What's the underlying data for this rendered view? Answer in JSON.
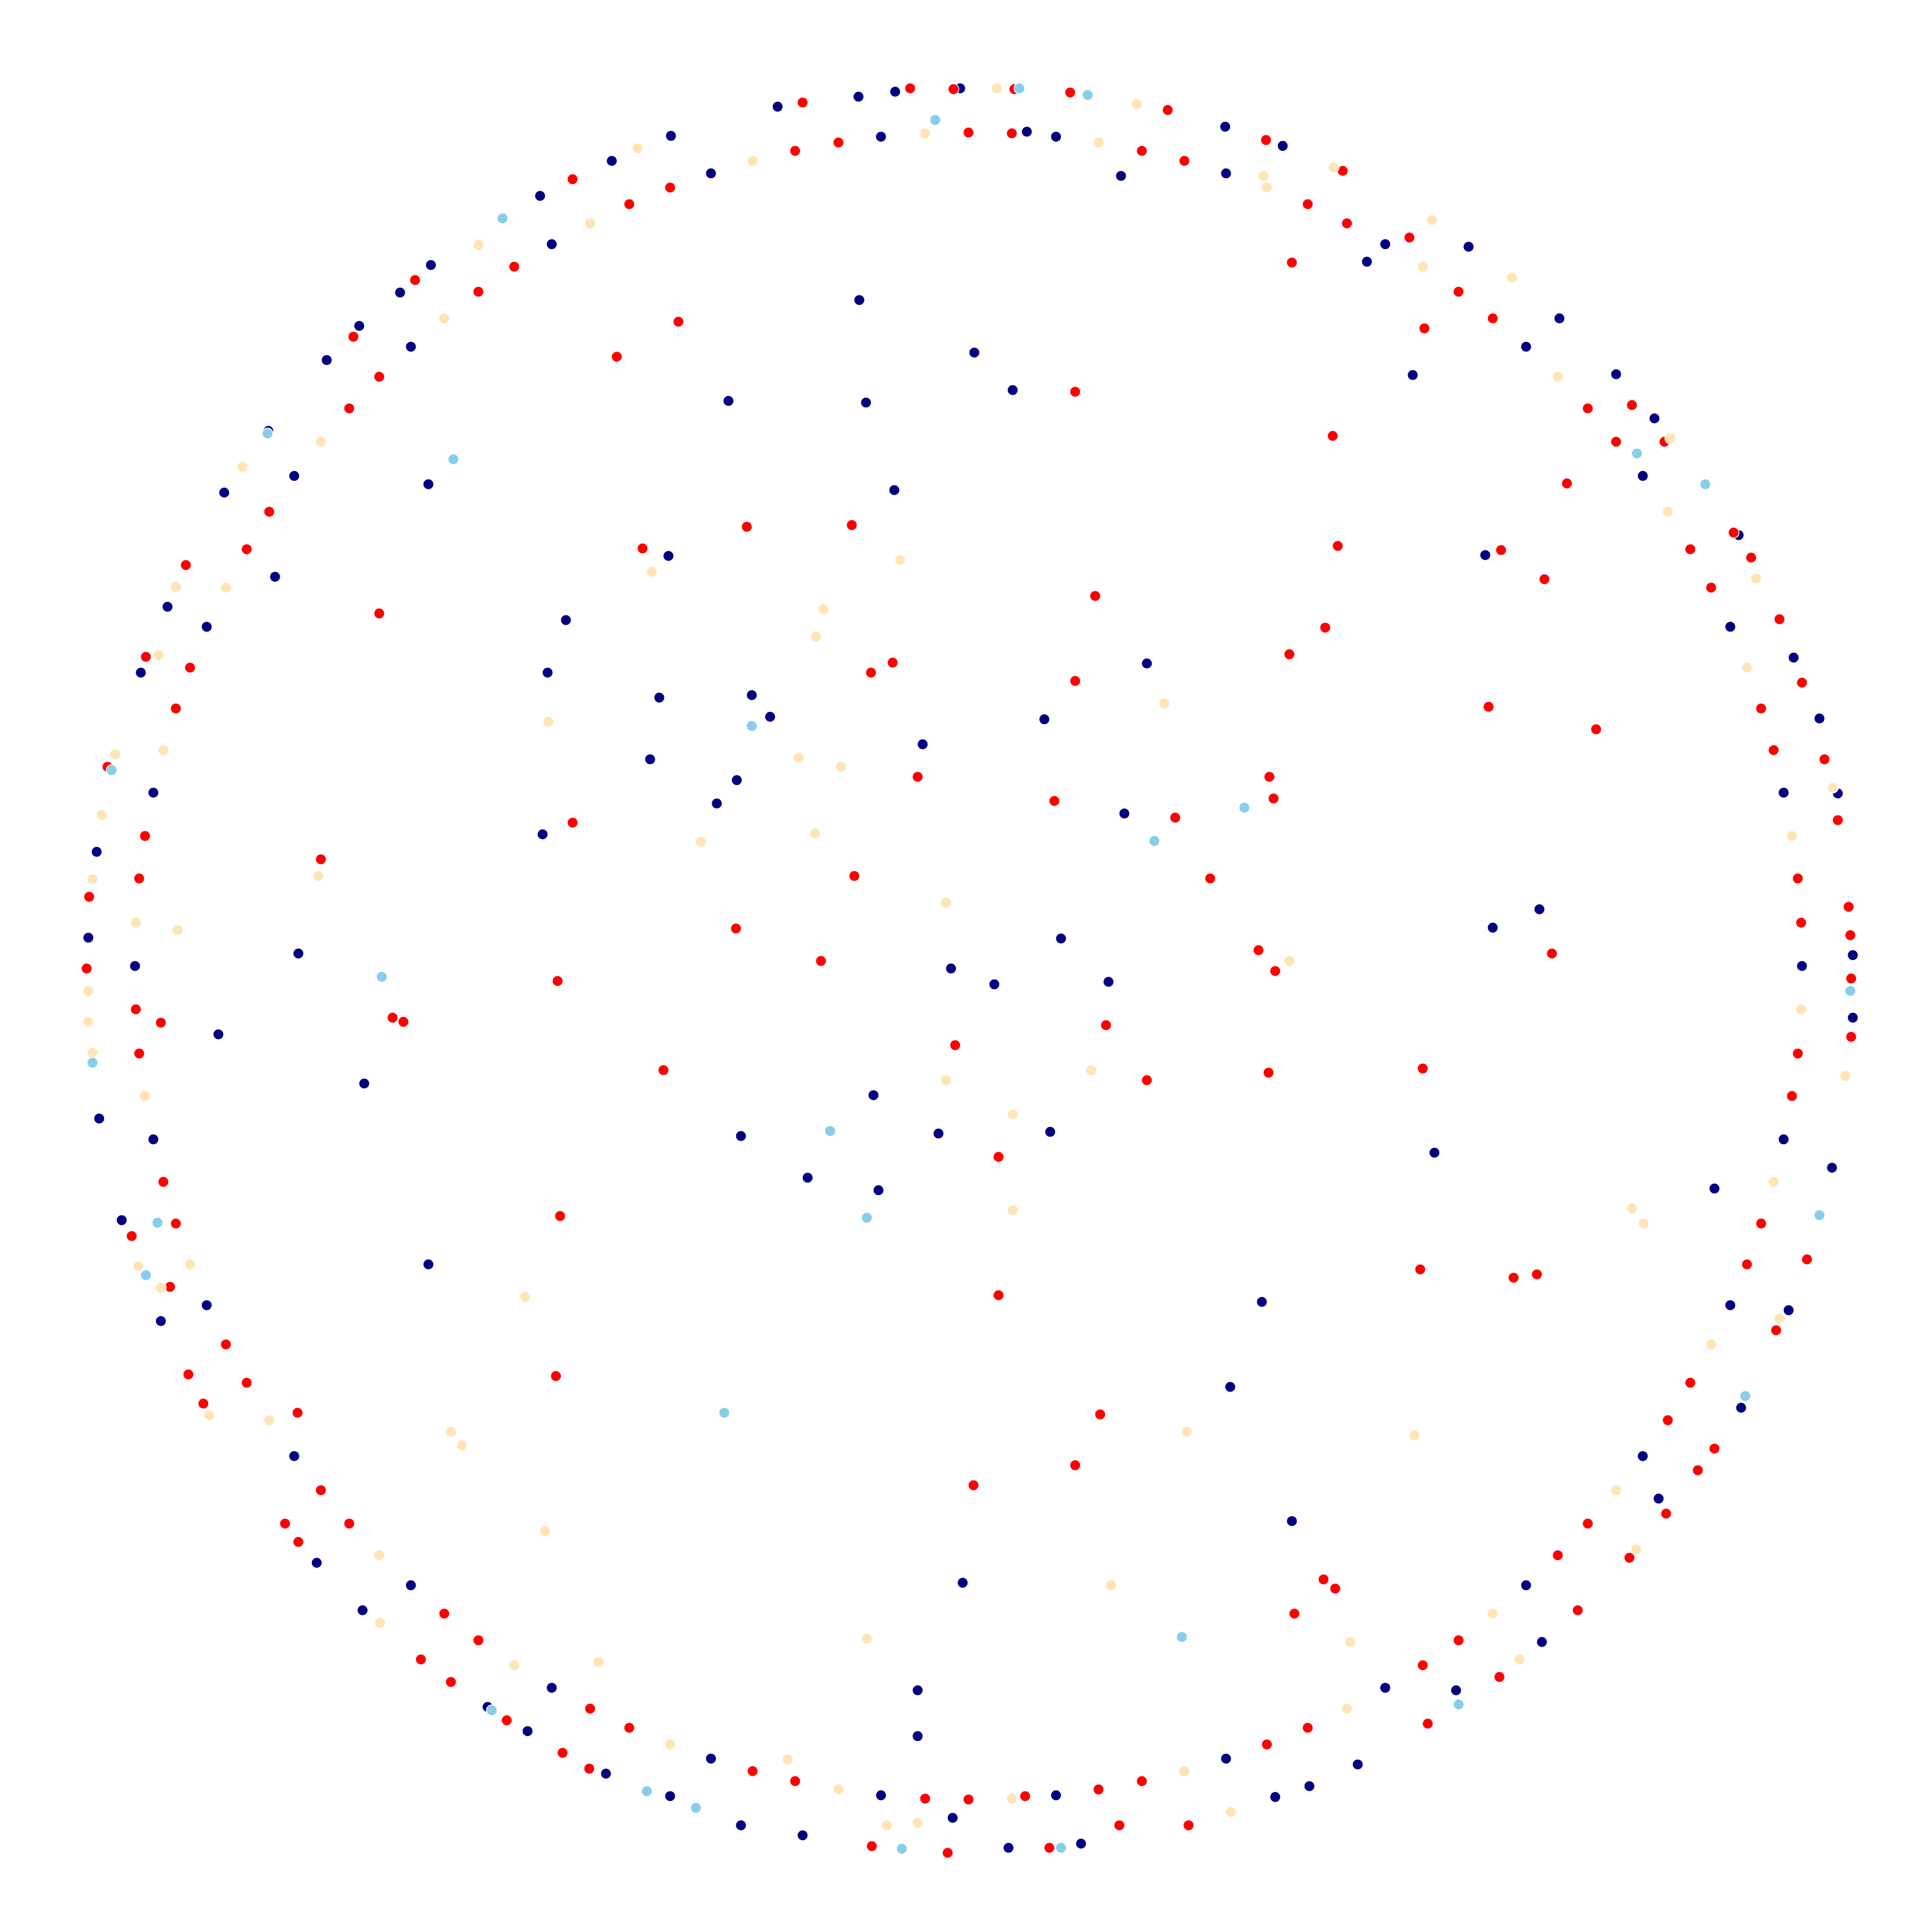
{
  "chart_data": {
    "type": "scatter",
    "xlim": [
      -1.162,
      1.156
    ],
    "ylim": [
      -1.159,
      1.159
    ],
    "series": [
      {
        "color": "#000080",
        "x": [
          -0.131,
          0.007,
          0.053,
          -0.288,
          -0.123,
          -0.089,
          -0.648,
          -0.36,
          -0.483,
          -0.505,
          -0.371,
          -0.26,
          -0.238,
          -0.382,
          -0.278,
          -0.302,
          -0.511,
          -0.055,
          0.091,
          0.214,
          0.187,
          0.111,
          -0.021,
          0.031,
          0.168,
          -0.804,
          -0.9,
          -0.725,
          -0.114,
          -0.273,
          -0.036,
          0.098,
          -0.193,
          -0.108,
          0.559,
          0.352,
          0.314,
          0.388,
          -0.007,
          -0.061,
          -0.061,
          -0.648,
          0.629,
          0.685,
          0.533,
          0.62,
          0.183,
          0.478,
          0.895,
          -0.832,
          -0.357,
          -0.428,
          -0.514,
          -0.645,
          -0.682,
          -0.731,
          -0.77,
          -0.84,
          -0.893,
          -0.961,
          -0.993,
          -1.046,
          -1.056,
          -1.043,
          -1.016,
          -0.969,
          -0.782,
          -0.727,
          -0.577,
          -0.529,
          -0.435,
          -0.358,
          -0.273,
          -0.199,
          -0.019,
          0.048,
          0.135,
          0.368,
          0.409,
          0.467,
          0.585,
          0.688,
          0.828,
          0.927,
          0.984,
          1.036,
          1.061,
          1.061,
          1.043,
          1.021,
          0.99,
          0.924,
          0.823,
          0.777,
          0.709,
          0.6,
          0.377,
          0.308,
          0.07,
          -0.01,
          -0.088,
          -0.132,
          -0.229,
          1,
          0.978,
          0.914,
          0.809,
          0.669,
          0.5,
          0.309,
          0.105,
          -0.105,
          -0.309,
          -0.5,
          -0.669,
          -0.809,
          -0.914,
          -0.978,
          -1,
          -0.978,
          -0.914,
          -0.809,
          -0.669,
          -0.5,
          -0.309,
          -0.105,
          0.105,
          0.309,
          0.5,
          0.669,
          0.809,
          0.914,
          0.978
        ],
        "y": [
          0.799,
          0.736,
          0.691,
          0.678,
          0.676,
          0.571,
          0.578,
          0.492,
          0.415,
          0.352,
          0.322,
          0.325,
          0.299,
          0.248,
          0.223,
          0.195,
          0.158,
          0.266,
          0.296,
          0.363,
          0.183,
          0.033,
          -0.003,
          -0.022,
          -0.019,
          0.015,
          -0.082,
          -0.141,
          -0.155,
          -0.204,
          -0.201,
          -0.199,
          -0.254,
          -0.269,
          -0.224,
          -0.403,
          -0.505,
          -0.666,
          -0.74,
          -0.869,
          -0.924,
          -0.358,
          0.046,
          0.068,
          0.709,
          0.493,
          0.948,
          0.845,
          -0.267,
          0.467,
          0.996,
          0.966,
          0.924,
          0.841,
          0.808,
          0.768,
          0.727,
          0.642,
          0.568,
          0.431,
          0.352,
          0.137,
          0.034,
          -0.183,
          -0.305,
          -0.426,
          -0.716,
          -0.773,
          -0.889,
          -0.918,
          -0.969,
          -0.996,
          -1.031,
          -1.043,
          -1.022,
          -1.058,
          -1.053,
          -0.997,
          -0.984,
          -0.958,
          -0.869,
          -0.811,
          -0.639,
          -0.53,
          -0.413,
          -0.242,
          -0.062,
          0.013,
          0.207,
          0.297,
          0.37,
          0.517,
          0.657,
          0.71,
          0.777,
          0.863,
          0.984,
          1.007,
          1.001,
          1.053,
          1.049,
          1.043,
          1.031,
          0,
          0.208,
          0.407,
          0.588,
          0.743,
          0.866,
          0.951,
          0.995,
          0.995,
          0.951,
          0.866,
          0.743,
          0.588,
          0.407,
          0.208,
          0,
          -0.208,
          -0.407,
          -0.588,
          -0.743,
          -0.866,
          -0.951,
          -0.995,
          -0.995,
          -0.951,
          -0.866,
          -0.743,
          -0.588,
          -0.407,
          -0.208
        ]
      },
      {
        "color": "#ff0000",
        "x": [
          -0.348,
          -0.422,
          -0.266,
          -0.14,
          -0.391,
          -0.707,
          -0.117,
          -0.091,
          0.128,
          0.152,
          0.388,
          0.547,
          0.437,
          0.443,
          0.718,
          0.639,
          0.691,
          0.428,
          0.385,
          0.624,
          0.753,
          0.361,
          0.366,
          0.248,
          0.103,
          -0.061,
          -0.475,
          -0.777,
          -0.137,
          0.29,
          -0.279,
          -0.177,
          -0.493,
          -0.691,
          -0.678,
          -0.969,
          0.348,
          0.368,
          0.7,
          0.165,
          -0.016,
          -0.366,
          0.214,
          0.36,
          0.545,
          0.036,
          -0.49,
          0.036,
          0.542,
          0.654,
          0.682,
          -0.495,
          -0.805,
          0.158,
          0.128,
          0.006,
          0.426,
          0.44,
          0.391,
          0.128,
          -0.475,
          -0.664,
          -0.738,
          -0.939,
          -0.987,
          -1.033,
          -1.055,
          -1.058,
          -1.004,
          -0.958,
          -0.936,
          -0.918,
          -0.82,
          -0.804,
          -0.657,
          -0.621,
          -0.554,
          -0.487,
          -0.455,
          -0.116,
          -0.025,
          0.068,
          0.097,
          0.181,
          0.264,
          0.551,
          0.637,
          0.731,
          0.793,
          0.837,
          0.875,
          0.895,
          0.933,
          0.969,
          1.006,
          1.059,
          1.059,
          1.058,
          1.056,
          1.043,
          1.027,
          1.0,
          0.973,
          0.939,
          0.918,
          0.835,
          0.796,
          0.529,
          0.449,
          0.357,
          0.239,
          0.122,
          0.055,
          -0.018,
          -0.07,
          -0.199,
          0.999,
          0.995,
          0.966,
          0.951,
          0.891,
          0.866,
          0.777,
          0.743,
          0.629,
          0.588,
          0.454,
          0.407,
          0.259,
          0.208,
          0.052,
          0,
          -0.156,
          -0.208,
          -0.358,
          -0.407,
          -0.545,
          -0.588,
          -0.707,
          -0.743,
          -0.839,
          -0.866,
          -0.934,
          -0.951,
          -0.988,
          -0.995,
          -0.999,
          -0.995,
          -0.966,
          -0.951,
          -0.891,
          -0.866,
          -0.777,
          -0.743,
          -0.629,
          -0.588,
          -0.454,
          -0.407,
          -0.259,
          -0.208,
          -0.052,
          0,
          0.156,
          0.208,
          0.358,
          0.407,
          0.545,
          0.588,
          0.707,
          0.743,
          0.839,
          0.866,
          0.934,
          0.951,
          0.988,
          0.995
        ],
        "y": [
          0.773,
          0.731,
          0.527,
          0.529,
          0.501,
          0.423,
          0.352,
          0.364,
          0.342,
          0.444,
          0.844,
          0.765,
          0.636,
          0.504,
          0.579,
          0.499,
          0.464,
          0.406,
          0.374,
          0.311,
          0.284,
          0.227,
          0.201,
          0.178,
          0.198,
          0.227,
          0.172,
          0.128,
          0.108,
          0.105,
          0.045,
          0.006,
          -0.018,
          -0.062,
          -0.067,
          -0.068,
          0.019,
          -0.006,
          0.015,
          -0.071,
          -0.095,
          -0.125,
          -0.137,
          -0.128,
          -0.123,
          -0.229,
          -0.3,
          -0.395,
          -0.364,
          -0.374,
          -0.37,
          -0.492,
          -0.536,
          -0.538,
          -0.599,
          -0.623,
          -0.736,
          -0.747,
          -0.777,
          0.689,
          0.944,
          0.823,
          0.755,
          0.481,
          0.371,
          0.239,
          0.083,
          -0.003,
          -0.324,
          -0.385,
          -0.49,
          -0.525,
          -0.669,
          -0.691,
          -0.832,
          -0.859,
          -0.905,
          -0.944,
          -0.963,
          -1.056,
          -1.064,
          -0.996,
          -1.058,
          -1.031,
          -1.031,
          -0.909,
          -0.853,
          -0.773,
          -0.71,
          -0.657,
          -0.605,
          -0.579,
          -0.516,
          -0.437,
          -0.352,
          -0.085,
          -0.015,
          0.037,
          0.071,
          0.175,
          0.248,
          0.34,
          0.416,
          0.49,
          0.52,
          0.629,
          0.673,
          0.874,
          0.954,
          0.991,
          1.027,
          1.048,
          1.052,
          1.052,
          1.053,
          1.036,
          0.052,
          0.105,
          0.259,
          0.309,
          0.454,
          0.5,
          0.629,
          0.669,
          0.777,
          0.809,
          0.891,
          0.914,
          0.966,
          0.978,
          0.999,
          1,
          0.988,
          0.978,
          0.934,
          0.914,
          0.839,
          0.809,
          0.707,
          0.669,
          0.545,
          0.5,
          0.358,
          0.309,
          0.156,
          0.105,
          -0.052,
          -0.105,
          -0.259,
          -0.309,
          -0.454,
          -0.5,
          -0.629,
          -0.669,
          -0.777,
          -0.809,
          -0.891,
          -0.914,
          -0.966,
          -0.978,
          -0.999,
          -1,
          -0.988,
          -0.978,
          -0.934,
          -0.914,
          -0.839,
          -0.809,
          -0.707,
          -0.669,
          -0.545,
          -0.5,
          -0.358,
          -0.309,
          -0.156,
          -0.105
        ]
      },
      {
        "color": "#ffe4b5",
        "x": [
          -0.082,
          -0.174,
          -0.183,
          -0.204,
          -0.153,
          0.235,
          -0.184,
          -0.321,
          -0.504,
          -0.38,
          -0.027,
          -0.78,
          -0.949,
          0.385,
          0.147,
          -0.027,
          0.053,
          0.053,
          -0.532,
          -0.621,
          -0.608,
          -0.508,
          -0.444,
          -0.122,
          -0.217,
          0.171,
          0.262,
          0.458,
          0.535,
          0.796,
          0.81,
          -0.397,
          -0.588,
          -0.871,
          -0.951,
          -0.972,
          -1.024,
          -1.04,
          -1.051,
          -1.056,
          -1.056,
          -1.051,
          -0.996,
          -0.969,
          -0.911,
          -0.706,
          -0.098,
          -0.061,
          0.315,
          0.661,
          0.801,
          0.973,
          1.052,
          1.037,
          0.945,
          0.842,
          0.652,
          0.556,
          0.438,
          0.354,
          0.202,
          0.034,
          0.988,
          0.934,
          0.839,
          0.707,
          0.545,
          0.358,
          0.156,
          -0.052,
          -0.259,
          -0.454,
          -0.629,
          -0.777,
          -0.891,
          -0.966,
          -0.999,
          -0.988,
          -0.934,
          -0.839,
          -0.707,
          -0.545,
          -0.358,
          -0.156,
          0.052,
          0.259,
          0.454,
          0.629,
          0.777,
          0.891,
          0.966,
          0.999
        ],
        "y": [
          0.487,
          0.428,
          0.395,
          0.25,
          0.239,
          0.315,
          0.159,
          0.149,
          0.293,
          0.473,
          0.076,
          0.108,
          0.043,
          0.006,
          -0.125,
          -0.137,
          -0.178,
          -0.293,
          -0.397,
          -0.559,
          -0.575,
          -0.678,
          -0.835,
          -0.807,
          -0.952,
          -0.743,
          -0.559,
          -0.811,
          -0.563,
          -0.291,
          -0.309,
          0.981,
          0.865,
          0.599,
          0.455,
          0.373,
          0.254,
          0.181,
          0.104,
          -0.03,
          -0.067,
          -0.104,
          -0.36,
          -0.386,
          -0.539,
          -0.788,
          -1.031,
          -1.028,
          -1.015,
          -0.832,
          -0.7,
          -0.423,
          -0.132,
          0.214,
          0.465,
          0.633,
          0.826,
          0.895,
          0.958,
          0.948,
          1.034,
          1.053,
          0.156,
          0.358,
          0.545,
          0.707,
          0.839,
          0.934,
          0.988,
          0.999,
          0.966,
          0.891,
          0.777,
          0.629,
          0.454,
          0.259,
          0.052,
          -0.156,
          -0.358,
          -0.545,
          -0.707,
          -0.839,
          -0.934,
          -0.988,
          -0.999,
          -0.966,
          -0.891,
          -0.777,
          -0.629,
          -0.454,
          -0.259,
          -0.052
        ]
      },
      {
        "color": "#87ceeb",
        "x": [
          -0.618,
          -0.26,
          0.331,
          0.223,
          -0.704,
          -0.166,
          -0.122,
          -0.973,
          -0.293,
          0.256,
          0.588,
          0.932,
          1.021,
          1.058,
          0.884,
          0.802,
          0.143,
          0.061,
          -0.04,
          -0.559,
          -0.841,
          -1.028,
          -1.051,
          -0.987,
          -0.572,
          -0.386,
          -0.327,
          -0.08,
          0.111
        ],
        "y": [
          0.608,
          0.288,
          0.19,
          0.15,
          -0.013,
          -0.198,
          -0.302,
          -0.308,
          -0.536,
          -0.805,
          -0.886,
          -0.516,
          -0.299,
          -0.03,
          0.578,
          0.615,
          1.045,
          1.053,
          1.015,
          0.897,
          0.639,
          0.235,
          -0.116,
          -0.371,
          -0.893,
          -0.99,
          -1.01,
          -1.059,
          -1.058
        ]
      }
    ]
  }
}
